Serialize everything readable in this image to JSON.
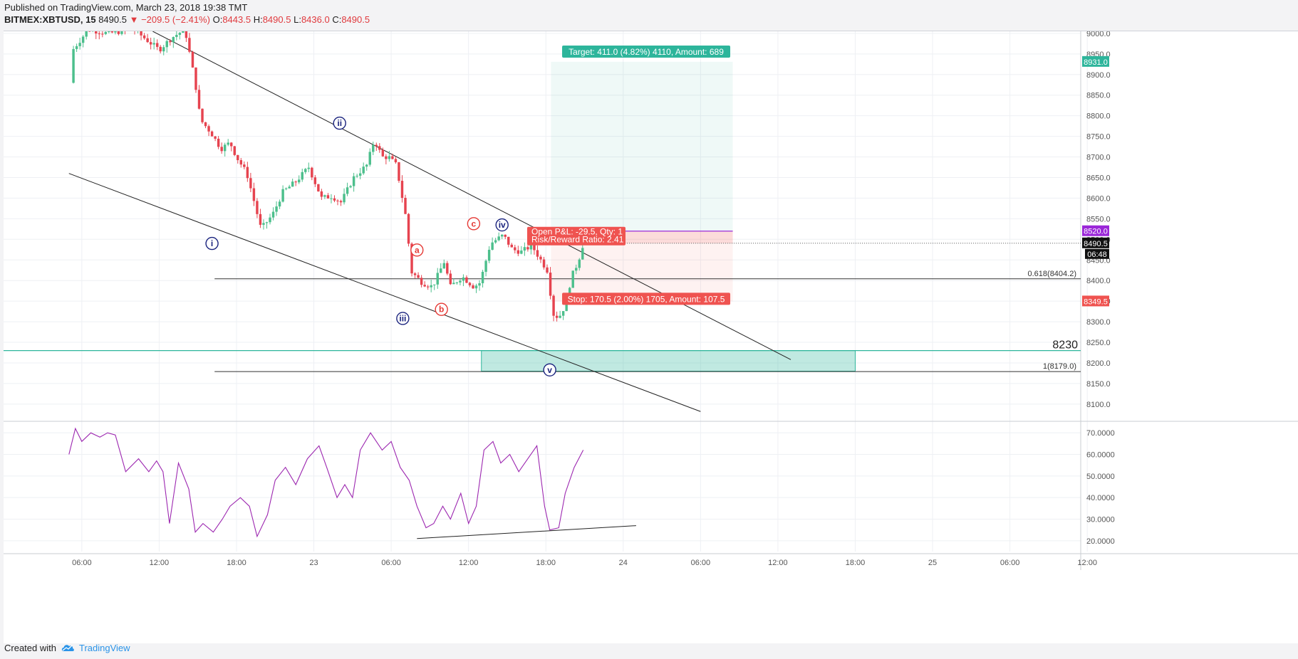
{
  "header": {
    "published": "Published on TradingView.com, March 23, 2018 19:38 TMT",
    "symbol": "BITMEX:XBTUSD, 15",
    "last": "8490.5",
    "change": "−209.5 (−2.41%)",
    "o_label": "O:",
    "o_value": "8443.5",
    "h_label": "H:",
    "h_value": "8490.5",
    "l_label": "L:",
    "l_value": "8436.0",
    "c_label": "C:",
    "c_value": "8490.5"
  },
  "footer": {
    "created_with": "Created with",
    "brand": "TradingView"
  },
  "colors": {
    "up": "#26a69a",
    "up_fill": "#4cbf8c",
    "down": "#e6434f",
    "grid": "#eef0f4",
    "rsi": "#9c27b0",
    "target": "#2db59b",
    "stop": "#ef5350",
    "position": "#9b27d8"
  },
  "chart_data": {
    "type": "candlestick",
    "symbol": "BITMEX:XBTUSD",
    "interval": "15",
    "price_axis": {
      "ylim": [
        8060,
        9005
      ],
      "ticks": [
        9000.0,
        8950.0,
        8900.0,
        8850.0,
        8800.0,
        8750.0,
        8700.0,
        8650.0,
        8600.0,
        8550.0,
        8500.0,
        8450.0,
        8400.0,
        8350.0,
        8300.0,
        8250.0,
        8200.0,
        8150.0,
        8100.0
      ],
      "tick_labels": [
        "9000.0",
        "8950.0",
        "8900.0",
        "8850.0",
        "8800.0",
        "8750.0",
        "8700.0",
        "8650.0",
        "8600.0",
        "8550.0",
        "8500.0",
        "8450.0",
        "8400.0",
        "8350.0",
        "8300.0",
        "8250.0",
        "8200.0",
        "8150.0",
        "8100.0"
      ]
    },
    "time_axis": {
      "tick_labels": [
        "06:00",
        "12:00",
        "18:00",
        "23",
        "06:00",
        "12:00",
        "18:00",
        "24",
        "06:00",
        "12:00",
        "18:00",
        "25",
        "06:00",
        "12:00"
      ],
      "tick_hours": [
        6,
        12,
        18,
        24,
        30,
        36,
        42,
        48,
        54,
        60,
        66,
        72,
        78,
        84
      ]
    },
    "price_path": [
      [
        5.1,
        8880
      ],
      [
        5.3,
        8960
      ],
      [
        6.5,
        9010
      ],
      [
        8.0,
        9000
      ],
      [
        10.0,
        9010
      ],
      [
        12.0,
        8960
      ],
      [
        13.0,
        8990
      ],
      [
        14.0,
        9010
      ],
      [
        14.8,
        8880
      ],
      [
        15.2,
        8790
      ],
      [
        16.0,
        8760
      ],
      [
        16.8,
        8720
      ],
      [
        17.5,
        8735
      ],
      [
        18.0,
        8700
      ],
      [
        18.8,
        8660
      ],
      [
        19.3,
        8600
      ],
      [
        19.9,
        8525
      ],
      [
        20.8,
        8560
      ],
      [
        21.6,
        8615
      ],
      [
        22.6,
        8640
      ],
      [
        23.6,
        8675
      ],
      [
        24.6,
        8600
      ],
      [
        25.4,
        8605
      ],
      [
        26.1,
        8590
      ],
      [
        27.1,
        8650
      ],
      [
        28.1,
        8680
      ],
      [
        28.7,
        8742
      ],
      [
        29.3,
        8700
      ],
      [
        29.8,
        8700
      ],
      [
        30.4,
        8680
      ],
      [
        31.1,
        8560
      ],
      [
        31.6,
        8420
      ],
      [
        32.4,
        8395
      ],
      [
        33.2,
        8385
      ],
      [
        34.1,
        8445
      ],
      [
        34.6,
        8385
      ],
      [
        35.5,
        8410
      ],
      [
        36.4,
        8385
      ],
      [
        36.9,
        8395
      ],
      [
        37.7,
        8490
      ],
      [
        38.7,
        8510
      ],
      [
        39.4,
        8475
      ],
      [
        40.1,
        8470
      ],
      [
        40.9,
        8485
      ],
      [
        41.6,
        8450
      ],
      [
        42.2,
        8420
      ],
      [
        42.5,
        8320
      ],
      [
        43.0,
        8310
      ],
      [
        43.5,
        8340
      ],
      [
        44.0,
        8410
      ],
      [
        44.5,
        8445
      ],
      [
        44.9,
        8490.5
      ]
    ],
    "rsi": {
      "ylim": [
        15,
        75
      ],
      "tick_labels": [
        "70.0000",
        "60.0000",
        "50.0000",
        "40.0000",
        "30.0000",
        "20.0000"
      ],
      "ticks": [
        70,
        60,
        50,
        40,
        30,
        20
      ],
      "points": [
        [
          5.0,
          60
        ],
        [
          5.5,
          72
        ],
        [
          6.0,
          66
        ],
        [
          6.7,
          70
        ],
        [
          7.4,
          68
        ],
        [
          8.0,
          70
        ],
        [
          8.6,
          69
        ],
        [
          9.4,
          52
        ],
        [
          10.4,
          58
        ],
        [
          11.2,
          52
        ],
        [
          11.8,
          57
        ],
        [
          12.3,
          52
        ],
        [
          12.8,
          28
        ],
        [
          13.5,
          56
        ],
        [
          14.3,
          44
        ],
        [
          14.8,
          24
        ],
        [
          15.4,
          28
        ],
        [
          16.2,
          24
        ],
        [
          16.9,
          30
        ],
        [
          17.5,
          36
        ],
        [
          18.3,
          40
        ],
        [
          19.0,
          36
        ],
        [
          19.6,
          22
        ],
        [
          20.4,
          32
        ],
        [
          21.0,
          48
        ],
        [
          21.8,
          54
        ],
        [
          22.6,
          46
        ],
        [
          23.5,
          58
        ],
        [
          24.4,
          64
        ],
        [
          25.0,
          54
        ],
        [
          25.8,
          40
        ],
        [
          26.4,
          46
        ],
        [
          27.0,
          40
        ],
        [
          27.6,
          62
        ],
        [
          28.4,
          70
        ],
        [
          29.3,
          62
        ],
        [
          30.0,
          66
        ],
        [
          30.7,
          54
        ],
        [
          31.4,
          48
        ],
        [
          32.0,
          36
        ],
        [
          32.7,
          26
        ],
        [
          33.3,
          28
        ],
        [
          34.0,
          36
        ],
        [
          34.6,
          30
        ],
        [
          35.4,
          42
        ],
        [
          36.0,
          28
        ],
        [
          36.6,
          36
        ],
        [
          37.2,
          62
        ],
        [
          37.9,
          66
        ],
        [
          38.5,
          56
        ],
        [
          39.2,
          60
        ],
        [
          39.9,
          52
        ],
        [
          40.6,
          58
        ],
        [
          41.3,
          64
        ],
        [
          41.9,
          36
        ],
        [
          42.3,
          25
        ],
        [
          43.0,
          26
        ],
        [
          43.5,
          42
        ],
        [
          44.2,
          54
        ],
        [
          44.9,
          62
        ]
      ],
      "divergence_line": [
        [
          32.0,
          21
        ],
        [
          49.0,
          27
        ]
      ]
    },
    "trendlines": [
      {
        "from": [
          5.0,
          8660
        ],
        "to": [
          54.0,
          8082
        ]
      },
      {
        "from": [
          11.5,
          9005
        ],
        "to": [
          61.0,
          8208
        ]
      },
      {
        "from": [
          41.0,
          8490.5
        ],
        "to": [
          99.9,
          8490.5
        ],
        "style": "dotted"
      }
    ],
    "fib_levels": [
      {
        "label": "0.618(8404.2)",
        "price": 8404.2
      },
      {
        "label": "1(8179.0)",
        "price": 8179.0
      }
    ],
    "support_zone": {
      "top": 8230,
      "bottom": 8180,
      "label": "8230",
      "x_from": 37.0,
      "x_to": 66.0
    },
    "wave_labels": [
      {
        "text": "i",
        "time": 16.1,
        "price": 8490,
        "color": "#1a237e"
      },
      {
        "text": "ii",
        "time": 26.0,
        "price": 8782,
        "color": "#1a237e"
      },
      {
        "text": "iii",
        "time": 30.9,
        "price": 8308,
        "color": "#1a237e"
      },
      {
        "text": "iv",
        "time": 38.6,
        "price": 8535,
        "color": "#1a237e"
      },
      {
        "text": "v",
        "time": 42.3,
        "price": 8183,
        "color": "#1a237e"
      },
      {
        "text": "a",
        "time": 32.0,
        "price": 8474,
        "color": "#e53935"
      },
      {
        "text": "b",
        "time": 33.9,
        "price": 8330,
        "color": "#e53935"
      },
      {
        "text": "c",
        "time": 36.4,
        "price": 8538,
        "color": "#e53935"
      }
    ],
    "position": {
      "entry": 8520.0,
      "target": 8931.0,
      "stop": 8349.5,
      "last": 8490.5,
      "time_from": 42.4,
      "time_to": 56.5,
      "target_label": "Target: 411.0 (4.82%) 4110, Amount: 689",
      "stop_label": "Stop: 170.5 (2.00%) 1705, Amount: 107.5",
      "pnl_label": "Open P&L: -29.5, Qty: 1",
      "rr_label": "Risk/Reward Ratio: 2.41",
      "target_tag": "8931.0",
      "entry_tag": "8520.0",
      "last_tag": "8490.5",
      "stop_tag": "8349.5",
      "countdown": "06:48"
    }
  }
}
